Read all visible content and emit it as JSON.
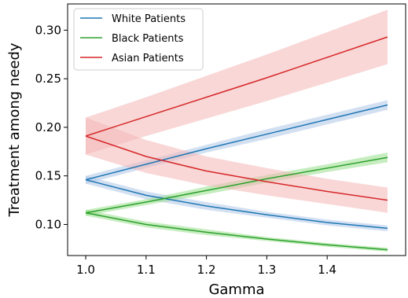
{
  "chart_data": {
    "type": "line",
    "xlabel": "Gamma",
    "ylabel": "Treatment among needy",
    "xlim": [
      0.97,
      1.53
    ],
    "ylim": [
      0.068,
      0.327
    ],
    "xticks": [
      1.0,
      1.1,
      1.2,
      1.3,
      1.4
    ],
    "xtick_labels": [
      "1.0",
      "1.1",
      "1.2",
      "1.3",
      "1.4"
    ],
    "yticks": [
      0.1,
      0.15,
      0.2,
      0.25,
      0.3
    ],
    "ytick_labels": [
      "0.10",
      "0.15",
      "0.20",
      "0.25",
      "0.30"
    ],
    "grid": false,
    "legend_position": "top-left",
    "x": [
      1.0,
      1.1,
      1.2,
      1.3,
      1.4,
      1.5
    ],
    "series": [
      {
        "name": "White Patients",
        "color": "#1f77b4",
        "band_color": "#aec7e8",
        "upper": [
          0.146,
          0.162,
          0.178,
          0.193,
          0.208,
          0.223
        ],
        "upper_band": [
          0.004,
          0.004,
          0.004,
          0.005,
          0.005,
          0.005
        ],
        "lower": [
          0.146,
          0.13,
          0.119,
          0.11,
          0.102,
          0.096
        ],
        "lower_band": [
          0.004,
          0.004,
          0.004,
          0.003,
          0.003,
          0.003
        ]
      },
      {
        "name": "Black Patients",
        "color": "#2ca02c",
        "band_color": "#98df8a",
        "upper": [
          0.112,
          0.123,
          0.135,
          0.147,
          0.158,
          0.169
        ],
        "upper_band": [
          0.003,
          0.003,
          0.004,
          0.004,
          0.004,
          0.005
        ],
        "lower": [
          0.112,
          0.1,
          0.092,
          0.085,
          0.079,
          0.074
        ],
        "lower_band": [
          0.003,
          0.003,
          0.003,
          0.002,
          0.002,
          0.002
        ]
      },
      {
        "name": "Asian Patients",
        "color": "#d62728",
        "band_color": "#f4b6b6",
        "upper": [
          0.191,
          0.211,
          0.231,
          0.251,
          0.272,
          0.293
        ],
        "upper_band": [
          0.019,
          0.02,
          0.022,
          0.024,
          0.026,
          0.028
        ],
        "lower": [
          0.191,
          0.17,
          0.155,
          0.144,
          0.134,
          0.125
        ],
        "lower_band": [
          0.019,
          0.017,
          0.015,
          0.014,
          0.013,
          0.013
        ]
      }
    ]
  }
}
